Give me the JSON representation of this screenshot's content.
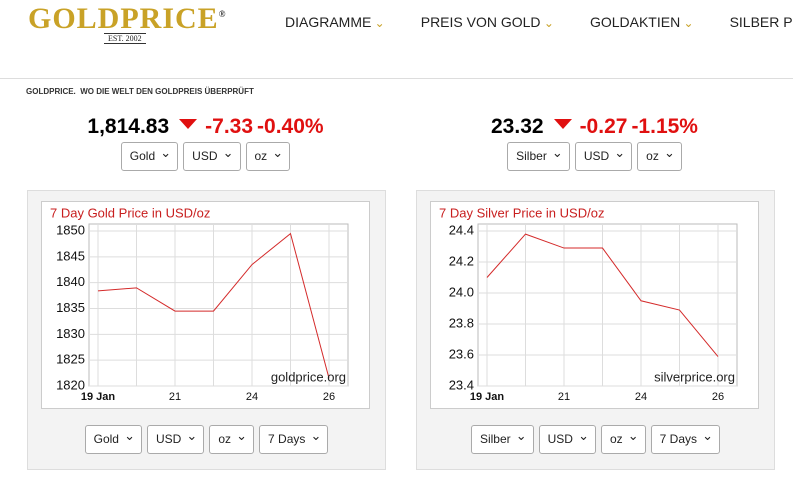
{
  "header": {
    "logo": "GOLDPRICE",
    "logo_mark": "®",
    "est": "EST. 2002",
    "nav": [
      "DIAGRAMME",
      "PREIS VON GOLD",
      "GOLDAKTIEN",
      "SILBER PREIS"
    ]
  },
  "tagline": "GOLDPRICE.  WO DIE WELT DEN GOLDPREIS ÜBERPRÜFT",
  "panels": [
    {
      "price": "1,814.83",
      "change": "-7.33",
      "change_pct": "-0.40%",
      "selects": [
        "Gold",
        "USD",
        "oz"
      ],
      "bottom_selects": [
        "Gold",
        "USD",
        "oz",
        "7 Days"
      ]
    },
    {
      "price": "23.32",
      "change": "-0.27",
      "change_pct": "-1.15%",
      "selects": [
        "Silber",
        "USD",
        "oz"
      ],
      "bottom_selects": [
        "Silber",
        "USD",
        "oz",
        "7 Days"
      ]
    }
  ],
  "chart_data": [
    {
      "type": "line",
      "title": "7 Day Gold Price in USD/oz",
      "watermark": "goldprice.org",
      "categories": [
        "19 Jan",
        null,
        "21",
        null,
        "24",
        null,
        "26"
      ],
      "series": [
        {
          "name": "Gold",
          "color": "#d42a2a",
          "values": [
            1838.4,
            1839,
            1834.5,
            1834.5,
            1843.5,
            1849.5,
            1821.5
          ]
        }
      ],
      "ylim": [
        1820,
        1850
      ],
      "yticks": [
        1820,
        1825,
        1830,
        1835,
        1840,
        1845,
        1850
      ],
      "grid": true
    },
    {
      "type": "line",
      "title": "7 Day Silver Price in USD/oz",
      "watermark": "silverprice.org",
      "categories": [
        "19 Jan",
        null,
        "21",
        null,
        "24",
        null,
        "26"
      ],
      "series": [
        {
          "name": "Silber",
          "color": "#d42a2a",
          "values": [
            24.1,
            24.38,
            24.29,
            24.29,
            23.95,
            23.89,
            23.59
          ]
        }
      ],
      "ylim": [
        23.4,
        24.4
      ],
      "yticks": [
        23.4,
        23.6,
        23.8,
        {
          "value": 24,
          "label": "24.0"
        },
        24.2,
        24.4
      ],
      "grid": true
    }
  ]
}
